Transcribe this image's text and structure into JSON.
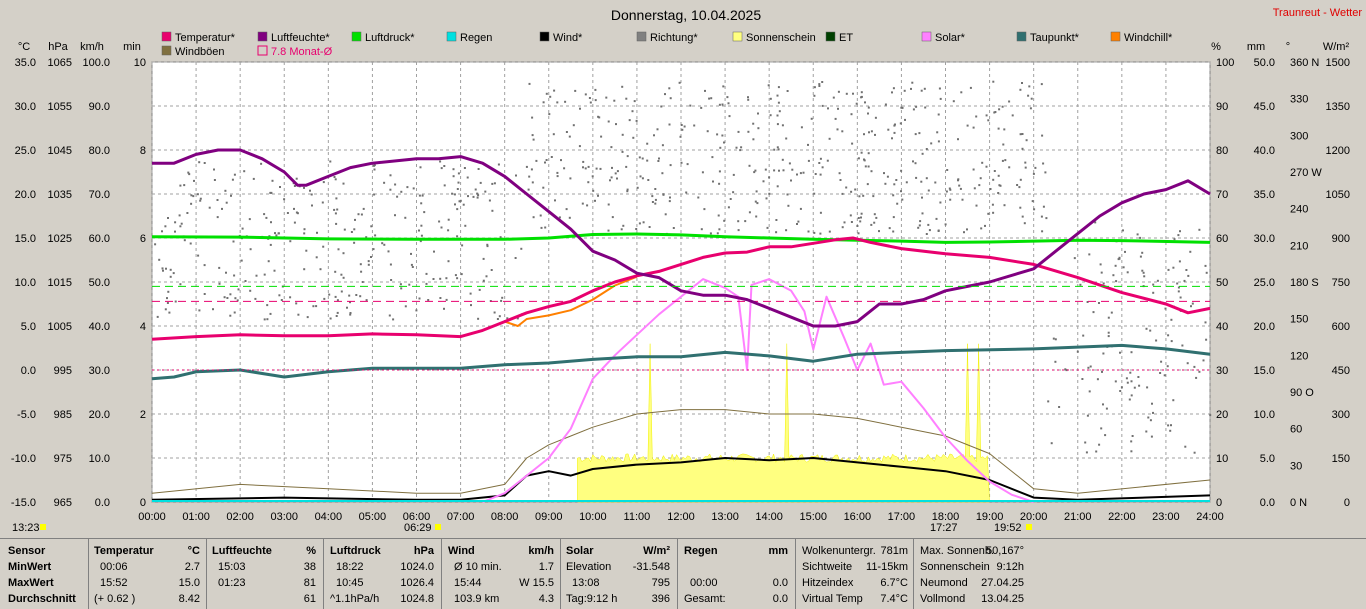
{
  "title": "Donnerstag, 10.04.2025",
  "site_link": "Traunreut - Wetter",
  "colors": {
    "temperature": "#e8006e",
    "humidity": "#800080",
    "pressure": "#00e000",
    "rain": "#00e0e0",
    "wind": "#000000",
    "direction": "#808080",
    "sunshine": "#ffff80",
    "et": "#004000",
    "solar": "#ff80ff",
    "dewpoint": "#307070",
    "windchill": "#ff8000",
    "gusts": "#807040",
    "monthavg": "#e8006e"
  },
  "legend": [
    {
      "label": "Temperatur*",
      "key": "temperature"
    },
    {
      "label": "Windböen",
      "key": "gusts"
    },
    {
      "label": "Luftfeuchte*",
      "key": "humidity"
    },
    {
      "label": "7.8 Monat-Ø",
      "key": "monthavg"
    },
    {
      "label": "Luftdruck*",
      "key": "pressure"
    },
    {
      "label": "Regen",
      "key": "rain"
    },
    {
      "label": "Wind*",
      "key": "wind"
    },
    {
      "label": "Richtung*",
      "key": "direction"
    },
    {
      "label": "Sonnenschein",
      "key": "sunshine"
    },
    {
      "label": "ET",
      "key": "et"
    },
    {
      "label": "Solar*",
      "key": "solar"
    },
    {
      "label": "Taupunkt*",
      "key": "dewpoint"
    },
    {
      "label": "Windchill*",
      "key": "windchill"
    }
  ],
  "axis_units": {
    "temp": "°C",
    "press": "hPa",
    "wind": "km/h",
    "min": "min",
    "hum": "%",
    "rain": "mm",
    "dir": "°",
    "solar": "W/m²"
  },
  "axis_ticks": {
    "temp": [
      "35.0",
      "30.0",
      "25.0",
      "20.0",
      "15.0",
      "10.0",
      "5.0",
      "0.0",
      "-5.0",
      "-10.0",
      "-15.0"
    ],
    "press": [
      "1065",
      "1055",
      "1045",
      "1035",
      "1025",
      "1015",
      "1005",
      "995",
      "985",
      "975",
      "965"
    ],
    "wind": [
      "100.0",
      "90.0",
      "80.0",
      "70.0",
      "60.0",
      "50.0",
      "40.0",
      "30.0",
      "20.0",
      "10.0",
      "0.0"
    ],
    "min": [
      "10",
      "8",
      "6",
      "4",
      "2",
      "0"
    ],
    "hum": [
      "100",
      "90",
      "80",
      "70",
      "60",
      "50",
      "40",
      "30",
      "20",
      "10",
      "0"
    ],
    "rain": [
      "50.0",
      "45.0",
      "40.0",
      "35.0",
      "30.0",
      "25.0",
      "20.0",
      "15.0",
      "10.0",
      "5.0",
      "0.0"
    ],
    "dir": [
      "360 N",
      "330",
      "300",
      "270 W",
      "240",
      "210",
      "180 S",
      "150",
      "120",
      "90 O",
      "60",
      "30",
      "0   N"
    ],
    "solar": [
      "1500",
      "1350",
      "1200",
      "1050",
      "900",
      "750",
      "600",
      "450",
      "300",
      "150",
      "0"
    ],
    "x": [
      "00:00",
      "01:00",
      "02:00",
      "03:00",
      "04:00",
      "05:00",
      "06:00",
      "07:00",
      "08:00",
      "09:00",
      "10:00",
      "11:00",
      "12:00",
      "13:00",
      "14:00",
      "15:00",
      "16:00",
      "17:00",
      "18:00",
      "19:00",
      "20:00",
      "21:00",
      "22:00",
      "23:00",
      "24:00"
    ]
  },
  "sun_marks": {
    "left_time": "13:23",
    "sunrise": "06:29",
    "sunset_prev": "17:27",
    "sunset": "19:52"
  },
  "chart_data": {
    "type": "line",
    "x_unit": "hour",
    "xlim": [
      0,
      24
    ],
    "series": [
      {
        "name": "Temperatur*",
        "axis": "temp",
        "ylim": [
          -15,
          35
        ],
        "points": [
          [
            0,
            3.5
          ],
          [
            1,
            3.8
          ],
          [
            2,
            4
          ],
          [
            3,
            3.9
          ],
          [
            4,
            3.9
          ],
          [
            5,
            4.1
          ],
          [
            6,
            4
          ],
          [
            7,
            3.8
          ],
          [
            7.5,
            4.5
          ],
          [
            8,
            5.5
          ],
          [
            8.5,
            6.5
          ],
          [
            9,
            7.2
          ],
          [
            9.5,
            7.8
          ],
          [
            10,
            9
          ],
          [
            10.5,
            10
          ],
          [
            11,
            10.7
          ],
          [
            11.5,
            11.2
          ],
          [
            12,
            12
          ],
          [
            12.5,
            12.8
          ],
          [
            13,
            13.3
          ],
          [
            13.5,
            13.4
          ],
          [
            14,
            14
          ],
          [
            14.5,
            14
          ],
          [
            15,
            14.4
          ],
          [
            15.5,
            14.8
          ],
          [
            15.9,
            15
          ],
          [
            16.3,
            14.5
          ],
          [
            17,
            13.8
          ],
          [
            18,
            13.2
          ],
          [
            19,
            12.8
          ],
          [
            20,
            12
          ],
          [
            21,
            10.5
          ],
          [
            22,
            8.8
          ],
          [
            23,
            7.5
          ],
          [
            23.5,
            6.5
          ],
          [
            24,
            7
          ]
        ]
      },
      {
        "name": "Luftfeuchte*",
        "axis": "hum",
        "ylim": [
          0,
          100
        ],
        "points": [
          [
            0,
            77
          ],
          [
            0.5,
            77
          ],
          [
            1,
            79
          ],
          [
            1.5,
            80
          ],
          [
            2,
            80
          ],
          [
            2.5,
            78
          ],
          [
            3,
            75
          ],
          [
            3.3,
            72
          ],
          [
            3.5,
            72
          ],
          [
            4,
            74
          ],
          [
            4.5,
            76
          ],
          [
            5,
            77
          ],
          [
            6,
            78
          ],
          [
            6.5,
            78
          ],
          [
            7,
            78.5
          ],
          [
            7.5,
            77
          ],
          [
            8,
            74
          ],
          [
            8.5,
            70
          ],
          [
            9,
            66
          ],
          [
            9.5,
            62
          ],
          [
            10,
            57
          ],
          [
            10.5,
            55
          ],
          [
            11,
            52
          ],
          [
            11.5,
            51
          ],
          [
            12,
            48
          ],
          [
            12.5,
            47
          ],
          [
            13,
            47
          ],
          [
            13.5,
            46
          ],
          [
            14,
            44
          ],
          [
            14.5,
            42
          ],
          [
            15,
            40
          ],
          [
            15.5,
            40
          ],
          [
            16,
            41
          ],
          [
            16.5,
            45
          ],
          [
            17,
            45
          ],
          [
            17.5,
            46
          ],
          [
            18,
            48
          ],
          [
            18.5,
            49
          ],
          [
            19,
            50
          ],
          [
            20,
            53
          ],
          [
            20.5,
            57
          ],
          [
            21,
            61
          ],
          [
            21.5,
            65
          ],
          [
            22,
            68
          ],
          [
            22.5,
            70
          ],
          [
            23,
            71
          ],
          [
            23.5,
            73
          ],
          [
            24,
            70
          ]
        ]
      },
      {
        "name": "Luftdruck*",
        "axis": "press",
        "ylim": [
          965,
          1065
        ],
        "points": [
          [
            0,
            1025.3
          ],
          [
            2,
            1025.2
          ],
          [
            4,
            1024.8
          ],
          [
            6,
            1024.7
          ],
          [
            8,
            1024.7
          ],
          [
            9,
            1025
          ],
          [
            10,
            1025.8
          ],
          [
            11,
            1025.9
          ],
          [
            12,
            1025.7
          ],
          [
            13,
            1025.3
          ],
          [
            14,
            1025
          ],
          [
            15,
            1024.7
          ],
          [
            16,
            1024.5
          ],
          [
            17,
            1024.3
          ],
          [
            18,
            1024
          ],
          [
            19,
            1024.1
          ],
          [
            20,
            1024.3
          ],
          [
            21,
            1024.5
          ],
          [
            22,
            1024.4
          ],
          [
            24,
            1024
          ]
        ]
      },
      {
        "name": "Taupunkt*",
        "axis": "temp",
        "ylim": [
          -15,
          35
        ],
        "points": [
          [
            0,
            -1
          ],
          [
            0.5,
            -0.8
          ],
          [
            1,
            -0.2
          ],
          [
            2,
            0
          ],
          [
            3,
            -0.8
          ],
          [
            4,
            -0.2
          ],
          [
            5,
            0.2
          ],
          [
            6,
            0.2
          ],
          [
            7,
            0.2
          ],
          [
            8,
            0.6
          ],
          [
            9,
            0.8
          ],
          [
            10,
            1.2
          ],
          [
            11,
            1.5
          ],
          [
            12,
            1.5
          ],
          [
            13,
            2
          ],
          [
            14,
            1.6
          ],
          [
            15,
            1
          ],
          [
            16,
            1.8
          ],
          [
            17,
            2
          ],
          [
            18,
            2.2
          ],
          [
            20,
            2.4
          ],
          [
            21,
            2.6
          ],
          [
            22,
            2.8
          ],
          [
            23,
            2.4
          ],
          [
            24,
            1.8
          ]
        ]
      },
      {
        "name": "Windchill*",
        "axis": "temp",
        "ylim": [
          -15,
          35
        ],
        "points": [
          [
            8,
            5.5
          ],
          [
            8.3,
            5
          ],
          [
            8.5,
            5.8
          ],
          [
            9,
            6.2
          ],
          [
            9.5,
            6.8
          ],
          [
            10,
            8
          ],
          [
            10.5,
            9.6
          ],
          [
            11,
            10.6
          ]
        ]
      },
      {
        "name": "Solar*",
        "axis": "solar",
        "ylim": [
          0,
          1500
        ],
        "points": [
          [
            7.5,
            0
          ],
          [
            8,
            30
          ],
          [
            8.5,
            90
          ],
          [
            9,
            150
          ],
          [
            9.5,
            250
          ],
          [
            10,
            420
          ],
          [
            10.5,
            500
          ],
          [
            11,
            570
          ],
          [
            11.5,
            640
          ],
          [
            12,
            700
          ],
          [
            12.5,
            760
          ],
          [
            13,
            730
          ],
          [
            13.3,
            700
          ],
          [
            13.5,
            450
          ],
          [
            13.6,
            740
          ],
          [
            14,
            760
          ],
          [
            14.5,
            720
          ],
          [
            14.8,
            650
          ],
          [
            15,
            520
          ],
          [
            15.3,
            700
          ],
          [
            15.7,
            560
          ],
          [
            16,
            450
          ],
          [
            16.3,
            540
          ],
          [
            16.6,
            400
          ],
          [
            17,
            410
          ],
          [
            17.5,
            320
          ],
          [
            18,
            220
          ],
          [
            18.5,
            140
          ],
          [
            19,
            70
          ],
          [
            19.5,
            25
          ],
          [
            20,
            0
          ]
        ]
      },
      {
        "name": "Wind*",
        "axis": "wind",
        "ylim": [
          0,
          100
        ],
        "points": [
          [
            0,
            0.5
          ],
          [
            3,
            1
          ],
          [
            6,
            0.5
          ],
          [
            7,
            0.5
          ],
          [
            8,
            1.5
          ],
          [
            8.5,
            6
          ],
          [
            9,
            7
          ],
          [
            9.5,
            6
          ],
          [
            10,
            7.5
          ],
          [
            11,
            8.5
          ],
          [
            12,
            9
          ],
          [
            13,
            10
          ],
          [
            14,
            9.5
          ],
          [
            15,
            10
          ],
          [
            16,
            9
          ],
          [
            17,
            8
          ],
          [
            18,
            7
          ],
          [
            19,
            5
          ],
          [
            20,
            1
          ],
          [
            21,
            0.5
          ],
          [
            24,
            1.5
          ]
        ]
      },
      {
        "name": "Windböen",
        "axis": "wind",
        "ylim": [
          0,
          100
        ],
        "points": [
          [
            0,
            2
          ],
          [
            2,
            4
          ],
          [
            4,
            3
          ],
          [
            6,
            2
          ],
          [
            7,
            2
          ],
          [
            8,
            4
          ],
          [
            8.5,
            10
          ],
          [
            9,
            13
          ],
          [
            9.5,
            15
          ],
          [
            10,
            17
          ],
          [
            11,
            20
          ],
          [
            12,
            21
          ],
          [
            13,
            21
          ],
          [
            14,
            20
          ],
          [
            15,
            20
          ],
          [
            16,
            19
          ],
          [
            17,
            17
          ],
          [
            18,
            15
          ],
          [
            19,
            11
          ],
          [
            20,
            3
          ],
          [
            21,
            2
          ],
          [
            24,
            5
          ]
        ]
      },
      {
        "name": "7.8 Monat-Ø",
        "axis": "temp",
        "ylim": [
          -15,
          35
        ],
        "points": [
          [
            0,
            7.8
          ],
          [
            24,
            7.8
          ]
        ]
      }
    ],
    "sunshine": {
      "label": "Sonnenschein",
      "axis": "min",
      "ylim": [
        0,
        10
      ],
      "intervals": [
        [
          9.65,
          19.0
        ]
      ],
      "typical_min": 0.9
    },
    "direction_points": {
      "label": "Richtung*",
      "axis": "dir",
      "ylim": [
        0,
        360
      ],
      "range": "scattered 40–345°"
    }
  },
  "stats": {
    "sensor": {
      "header": "Sensor",
      "rows": [
        "MinWert",
        "MaxWert",
        "Durchschnitt"
      ]
    },
    "temperature": {
      "header": "Temperatur",
      "unit": "°C",
      "rows": [
        [
          "00:06",
          "2.7"
        ],
        [
          "15:52",
          "15.0"
        ],
        [
          "(+ 0.62 )",
          "8.42"
        ]
      ]
    },
    "humidity": {
      "header": "Luftfeuchte",
      "unit": "%",
      "rows": [
        [
          "15:03",
          "38"
        ],
        [
          "01:23",
          "81"
        ],
        [
          "",
          "61"
        ]
      ]
    },
    "pressure": {
      "header": "Luftdruck",
      "unit": "hPa",
      "rows": [
        [
          "18:22",
          "1024.0"
        ],
        [
          "10:45",
          "1026.4"
        ],
        [
          "^1.1hPa/h",
          "1024.8"
        ]
      ]
    },
    "wind": {
      "header": "Wind",
      "unit": "km/h",
      "rows": [
        [
          "Ø 10 min.",
          "1.7"
        ],
        [
          "15:44",
          "W 15.5"
        ],
        [
          "103.9 km",
          "4.3"
        ]
      ]
    },
    "solar": {
      "header": "Solar",
      "unit": "W/m²",
      "rows": [
        [
          "Elevation",
          "-31.548"
        ],
        [
          "13:08",
          "795"
        ],
        [
          "Tag:9:12 h",
          "396"
        ]
      ]
    },
    "rain": {
      "header": "Regen",
      "unit": "mm",
      "rows": [
        [
          "",
          ""
        ],
        [
          "00:00",
          "0.0"
        ],
        [
          "Gesamt:",
          "0.0"
        ]
      ]
    },
    "misc1": [
      [
        "Wolkenuntergr.",
        "781m"
      ],
      [
        "Sichtweite",
        "11-15km"
      ],
      [
        "Hitzeindex",
        "6.7°C"
      ],
      [
        "Virtual Temp",
        "7.4°C"
      ]
    ],
    "misc2": [
      [
        "Max. Sonnenh.",
        "50,167°"
      ],
      [
        "Sonnenschein",
        "9:12h"
      ],
      [
        "Neumond",
        "27.04.25"
      ],
      [
        "Vollmond",
        "13.04.25"
      ]
    ]
  }
}
